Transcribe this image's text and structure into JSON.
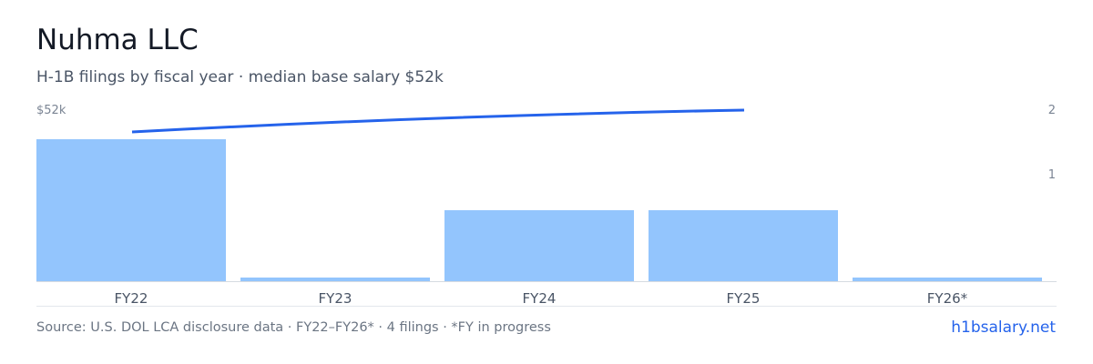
{
  "header": {
    "title": "Nuhma LLC",
    "subtitle": "H-1B filings by fiscal year · median base salary $52k"
  },
  "chart_data": {
    "type": "bar",
    "categories": [
      "FY22",
      "FY23",
      "FY24",
      "FY25",
      "FY26*"
    ],
    "series": [
      {
        "values": [
          2,
          0,
          1,
          1,
          0
        ],
        "color": "#93c5fd"
      }
    ],
    "line_series": {
      "x": [
        "FY22",
        "FY25"
      ],
      "values": [
        52000,
        52000
      ],
      "color": "#2563eb"
    },
    "left_axis": {
      "label": "$52k",
      "max": 52000
    },
    "right_axis": {
      "ticks": [
        "2",
        "1"
      ],
      "ylim": [
        0,
        2
      ]
    },
    "grid": false
  },
  "footer": {
    "source": "Source: U.S. DOL LCA disclosure data · FY22–FY26* · 4 filings · *FY in progress",
    "brand": "h1bsalary.net"
  },
  "colors": {
    "bar": "#93c5fd",
    "line": "#2563eb",
    "axis": "#d6dbe1",
    "tick_text": "#4a5566",
    "axis_text": "#7b8594"
  }
}
